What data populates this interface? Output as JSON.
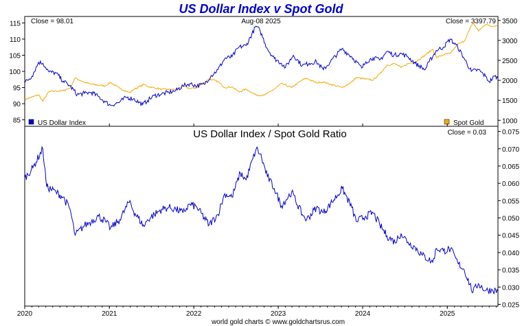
{
  "chart_data": [
    {
      "type": "line",
      "title": "US Dollar Index v Spot Gold",
      "date_label": "Aug-08  2025",
      "close_left": "Close = 98.01",
      "close_right": "Close = 3397.79",
      "legend": {
        "left": "US Dollar Index",
        "right": "Spot Gold"
      },
      "colors": {
        "usd": "#0000cc",
        "gold": "#f5a800"
      },
      "y_left": {
        "range": [
          83,
          117
        ],
        "ticks": [
          85,
          90,
          95,
          100,
          105,
          110,
          115
        ]
      },
      "y_right": {
        "range": [
          850,
          3600
        ],
        "ticks": [
          1000,
          1500,
          2000,
          2500,
          3000,
          3500
        ]
      },
      "series": [
        {
          "name": "US Dollar Index",
          "axis": "left",
          "points": [
            [
              "2020-01-01",
              96.5
            ],
            [
              "2020-02-01",
              98.5
            ],
            [
              "2020-03-01",
              102.8
            ],
            [
              "2020-03-20",
              102.5
            ],
            [
              "2020-04-15",
              99.8
            ],
            [
              "2020-05-15",
              99.5
            ],
            [
              "2020-06-15",
              97.0
            ],
            [
              "2020-07-15",
              95.5
            ],
            [
              "2020-08-15",
              92.8
            ],
            [
              "2020-09-15",
              93.2
            ],
            [
              "2020-10-15",
              93.5
            ],
            [
              "2020-11-15",
              92.2
            ],
            [
              "2020-12-15",
              90.5
            ],
            [
              "2021-01-06",
              89.5
            ],
            [
              "2021-02-15",
              90.5
            ],
            [
              "2021-03-15",
              92.0
            ],
            [
              "2021-04-15",
              91.5
            ],
            [
              "2021-05-25",
              89.7
            ],
            [
              "2021-06-15",
              91.0
            ],
            [
              "2021-07-15",
              92.5
            ],
            [
              "2021-08-15",
              93.0
            ],
            [
              "2021-09-15",
              93.5
            ],
            [
              "2021-10-15",
              94.0
            ],
            [
              "2021-11-15",
              95.5
            ],
            [
              "2021-12-15",
              96.2
            ],
            [
              "2022-01-15",
              95.5
            ],
            [
              "2022-02-15",
              96.0
            ],
            [
              "2022-03-15",
              98.5
            ],
            [
              "2022-04-15",
              100.5
            ],
            [
              "2022-05-15",
              104.0
            ],
            [
              "2022-06-15",
              104.5
            ],
            [
              "2022-07-15",
              107.5
            ],
            [
              "2022-08-15",
              108.0
            ],
            [
              "2022-09-27",
              114.0
            ],
            [
              "2022-10-15",
              112.5
            ],
            [
              "2022-11-15",
              107.0
            ],
            [
              "2022-12-15",
              104.0
            ],
            [
              "2023-01-15",
              102.5
            ],
            [
              "2023-02-01",
              101.2
            ],
            [
              "2023-03-07",
              105.0
            ],
            [
              "2023-04-15",
              101.8
            ],
            [
              "2023-05-15",
              102.5
            ],
            [
              "2023-06-15",
              103.0
            ],
            [
              "2023-07-15",
              100.5
            ],
            [
              "2023-08-15",
              103.0
            ],
            [
              "2023-10-03",
              107.0
            ],
            [
              "2023-11-15",
              104.5
            ],
            [
              "2023-12-28",
              101.0
            ],
            [
              "2024-01-15",
              103.0
            ],
            [
              "2024-02-15",
              104.2
            ],
            [
              "2024-03-15",
              103.5
            ],
            [
              "2024-04-16",
              106.2
            ],
            [
              "2024-05-15",
              105.0
            ],
            [
              "2024-06-15",
              105.5
            ],
            [
              "2024-07-15",
              104.5
            ],
            [
              "2024-08-15",
              102.5
            ],
            [
              "2024-09-27",
              100.5
            ],
            [
              "2024-10-15",
              103.0
            ],
            [
              "2024-11-15",
              106.5
            ],
            [
              "2024-12-15",
              107.5
            ],
            [
              "2025-01-13",
              110.0
            ],
            [
              "2025-02-15",
              107.5
            ],
            [
              "2025-03-15",
              104.0
            ],
            [
              "2025-04-15",
              100.0
            ],
            [
              "2025-05-15",
              100.5
            ],
            [
              "2025-06-15",
              98.5
            ],
            [
              "2025-07-01",
              96.8
            ],
            [
              "2025-07-25",
              98.5
            ],
            [
              "2025-08-08",
              98.01
            ]
          ]
        },
        {
          "name": "Spot Gold",
          "axis": "right",
          "points": [
            [
              "2020-01-01",
              1520
            ],
            [
              "2020-02-01",
              1580
            ],
            [
              "2020-03-01",
              1640
            ],
            [
              "2020-03-19",
              1480
            ],
            [
              "2020-04-15",
              1720
            ],
            [
              "2020-05-15",
              1730
            ],
            [
              "2020-06-15",
              1740
            ],
            [
              "2020-07-15",
              1810
            ],
            [
              "2020-08-06",
              2060
            ],
            [
              "2020-09-15",
              1950
            ],
            [
              "2020-10-15",
              1905
            ],
            [
              "2020-11-15",
              1880
            ],
            [
              "2020-12-15",
              1860
            ],
            [
              "2021-01-06",
              1950
            ],
            [
              "2021-02-15",
              1800
            ],
            [
              "2021-03-31",
              1690
            ],
            [
              "2021-04-15",
              1770
            ],
            [
              "2021-05-31",
              1900
            ],
            [
              "2021-06-15",
              1850
            ],
            [
              "2021-07-15",
              1810
            ],
            [
              "2021-08-15",
              1780
            ],
            [
              "2021-09-15",
              1770
            ],
            [
              "2021-10-15",
              1770
            ],
            [
              "2021-11-15",
              1860
            ],
            [
              "2021-12-15",
              1790
            ],
            [
              "2022-01-15",
              1820
            ],
            [
              "2022-03-08",
              2040
            ],
            [
              "2022-04-15",
              1970
            ],
            [
              "2022-05-15",
              1820
            ],
            [
              "2022-06-15",
              1840
            ],
            [
              "2022-07-15",
              1710
            ],
            [
              "2022-08-15",
              1780
            ],
            [
              "2022-09-28",
              1630
            ],
            [
              "2022-11-03",
              1630
            ],
            [
              "2022-12-15",
              1780
            ],
            [
              "2023-01-15",
              1920
            ],
            [
              "2023-02-28",
              1820
            ],
            [
              "2023-04-15",
              2010
            ],
            [
              "2023-05-04",
              2050
            ],
            [
              "2023-06-15",
              1940
            ],
            [
              "2023-07-15",
              1960
            ],
            [
              "2023-08-15",
              1900
            ],
            [
              "2023-10-05",
              1820
            ],
            [
              "2023-11-15",
              1960
            ],
            [
              "2023-12-04",
              2070
            ],
            [
              "2024-01-15",
              2030
            ],
            [
              "2024-02-15",
              2010
            ],
            [
              "2024-03-15",
              2160
            ],
            [
              "2024-04-15",
              2380
            ],
            [
              "2024-05-20",
              2420
            ],
            [
              "2024-06-15",
              2320
            ],
            [
              "2024-07-15",
              2420
            ],
            [
              "2024-08-15",
              2460
            ],
            [
              "2024-09-15",
              2580
            ],
            [
              "2024-10-30",
              2780
            ],
            [
              "2024-11-15",
              2570
            ],
            [
              "2024-12-15",
              2640
            ],
            [
              "2025-01-15",
              2680
            ],
            [
              "2025-02-15",
              2900
            ],
            [
              "2025-03-15",
              2980
            ],
            [
              "2025-04-22",
              3450
            ],
            [
              "2025-05-15",
              3240
            ],
            [
              "2025-06-15",
              3400
            ],
            [
              "2025-07-15",
              3340
            ],
            [
              "2025-08-08",
              3397.79
            ]
          ]
        }
      ]
    },
    {
      "type": "line",
      "title": "US Dollar Index  /  Spot Gold Ratio",
      "close": "Close = 0.03",
      "colors": {
        "ratio": "#0000cc"
      },
      "y_right": {
        "range": [
          0.0245,
          0.0765
        ],
        "ticks": [
          0.025,
          0.03,
          0.035,
          0.04,
          0.045,
          0.05,
          0.055,
          0.06,
          0.065,
          0.07,
          0.075
        ]
      },
      "x_range": [
        "2020-01-01",
        "2025-08-08"
      ],
      "x_ticks": [
        "2020",
        "2021",
        "2022",
        "2023",
        "2024",
        "2025"
      ],
      "series": [
        {
          "name": "US Dollar Index / Spot Gold Ratio",
          "points": [
            [
              "2020-01-01",
              0.0615
            ],
            [
              "2020-02-05",
              0.0645
            ],
            [
              "2020-03-19",
              0.07
            ],
            [
              "2020-04-05",
              0.059
            ],
            [
              "2020-05-15",
              0.0575
            ],
            [
              "2020-06-15",
              0.056
            ],
            [
              "2020-07-15",
              0.0525
            ],
            [
              "2020-08-06",
              0.045
            ],
            [
              "2020-09-15",
              0.0478
            ],
            [
              "2020-10-15",
              0.049
            ],
            [
              "2020-11-15",
              0.0505
            ],
            [
              "2020-12-15",
              0.049
            ],
            [
              "2021-01-06",
              0.047
            ],
            [
              "2021-02-15",
              0.0495
            ],
            [
              "2021-03-31",
              0.055
            ],
            [
              "2021-04-15",
              0.052
            ],
            [
              "2021-05-31",
              0.0475
            ],
            [
              "2021-06-15",
              0.0495
            ],
            [
              "2021-07-15",
              0.051
            ],
            [
              "2021-08-15",
              0.0525
            ],
            [
              "2021-09-15",
              0.053
            ],
            [
              "2021-10-15",
              0.0525
            ],
            [
              "2021-11-15",
              0.0515
            ],
            [
              "2021-12-15",
              0.054
            ],
            [
              "2022-01-15",
              0.053
            ],
            [
              "2022-03-08",
              0.048
            ],
            [
              "2022-04-15",
              0.051
            ],
            [
              "2022-05-15",
              0.057
            ],
            [
              "2022-06-15",
              0.056
            ],
            [
              "2022-07-21",
              0.063
            ],
            [
              "2022-08-15",
              0.061
            ],
            [
              "2022-09-28",
              0.07
            ],
            [
              "2022-10-15",
              0.0685
            ],
            [
              "2022-11-15",
              0.062
            ],
            [
              "2022-12-15",
              0.0585
            ],
            [
              "2023-01-15",
              0.0535
            ],
            [
              "2023-02-28",
              0.0575
            ],
            [
              "2023-04-15",
              0.051
            ],
            [
              "2023-05-04",
              0.0495
            ],
            [
              "2023-06-15",
              0.053
            ],
            [
              "2023-07-15",
              0.0515
            ],
            [
              "2023-08-15",
              0.054
            ],
            [
              "2023-10-05",
              0.0585
            ],
            [
              "2023-11-15",
              0.053
            ],
            [
              "2023-12-04",
              0.049
            ],
            [
              "2024-01-15",
              0.0505
            ],
            [
              "2024-02-15",
              0.0515
            ],
            [
              "2024-03-15",
              0.048
            ],
            [
              "2024-04-15",
              0.0448
            ],
            [
              "2024-05-20",
              0.043
            ],
            [
              "2024-06-15",
              0.0455
            ],
            [
              "2024-07-15",
              0.043
            ],
            [
              "2024-08-15",
              0.0415
            ],
            [
              "2024-09-15",
              0.0392
            ],
            [
              "2024-10-30",
              0.0372
            ],
            [
              "2024-11-15",
              0.0412
            ],
            [
              "2024-12-15",
              0.0405
            ],
            [
              "2025-01-15",
              0.041
            ],
            [
              "2025-02-15",
              0.037
            ],
            [
              "2025-03-15",
              0.035
            ],
            [
              "2025-04-22",
              0.0285
            ],
            [
              "2025-05-15",
              0.031
            ],
            [
              "2025-06-15",
              0.029
            ],
            [
              "2025-07-15",
              0.0292
            ],
            [
              "2025-08-08",
              0.0288
            ]
          ]
        }
      ]
    }
  ],
  "footer": "world gold charts © www.goldchartsrus.com"
}
